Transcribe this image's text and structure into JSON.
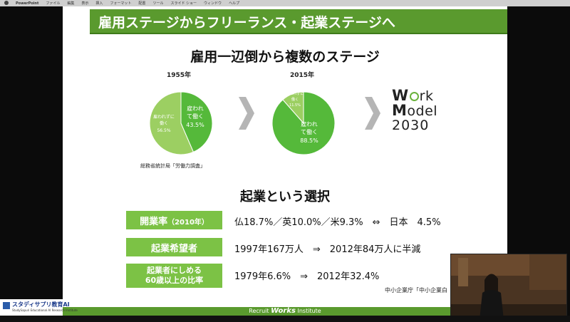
{
  "menubar": {
    "app": "PowerPoint",
    "items": [
      "ファイル",
      "編集",
      "表示",
      "挿入",
      "フォーマット",
      "配置",
      "ツール",
      "スライド ショー",
      "ウィンドウ",
      "ヘルプ"
    ]
  },
  "slide": {
    "title": "雇用ステージからフリーランス・起業ステージへ",
    "subtitle": "雇用一辺倒から複数のステージ",
    "pie1": {
      "year": "1955年",
      "employed_label": "雇われ\nて働く",
      "employed_value": "43.5%",
      "employed_fraction": 0.435,
      "self_label": "雇われずに\n働く",
      "self_value": "56.5%"
    },
    "pie2": {
      "year": "2015年",
      "employed_label": "雇われ\nて働く",
      "employed_value": "88.5%",
      "employed_fraction": 0.885,
      "self_label": "雇われずに\n働く",
      "self_value": "11.5%"
    },
    "source1": "総務省統計局「労働力調査」",
    "work_model": {
      "line1_cap": "W",
      "line1_rest": "rk",
      "line2_cap": "M",
      "line2_rest": "odel",
      "year": "2030"
    },
    "section2_title": "起業という選択",
    "rows": [
      {
        "label": "開業率",
        "label_suffix": "（2010年）",
        "text": "仏18.7%／英10.0%／米9.3%　⇔　日本　4.5%"
      },
      {
        "label": "起業希望者",
        "text": "1997年167万人　⇒　2012年84万人に半減"
      },
      {
        "label_line1": "起業者にしめる",
        "label_line2": "60歳以上の比率",
        "text": "1979年6.6%　⇒　2012年32.4%"
      }
    ],
    "source2": "中小企業庁「中小企業白",
    "footer_prefix": "Recruit",
    "footer_brand": "Works",
    "footer_suffix": "Institute"
  },
  "left_logo": {
    "name": "スタディサプリ教育AI",
    "sub": "StudySapuri Educational AI Research Institute"
  },
  "colors": {
    "green_dark": "#5a9a2e",
    "green_light": "#7cc245",
    "pie_light": "#9ccf62",
    "pie_bright": "#55b93a"
  }
}
